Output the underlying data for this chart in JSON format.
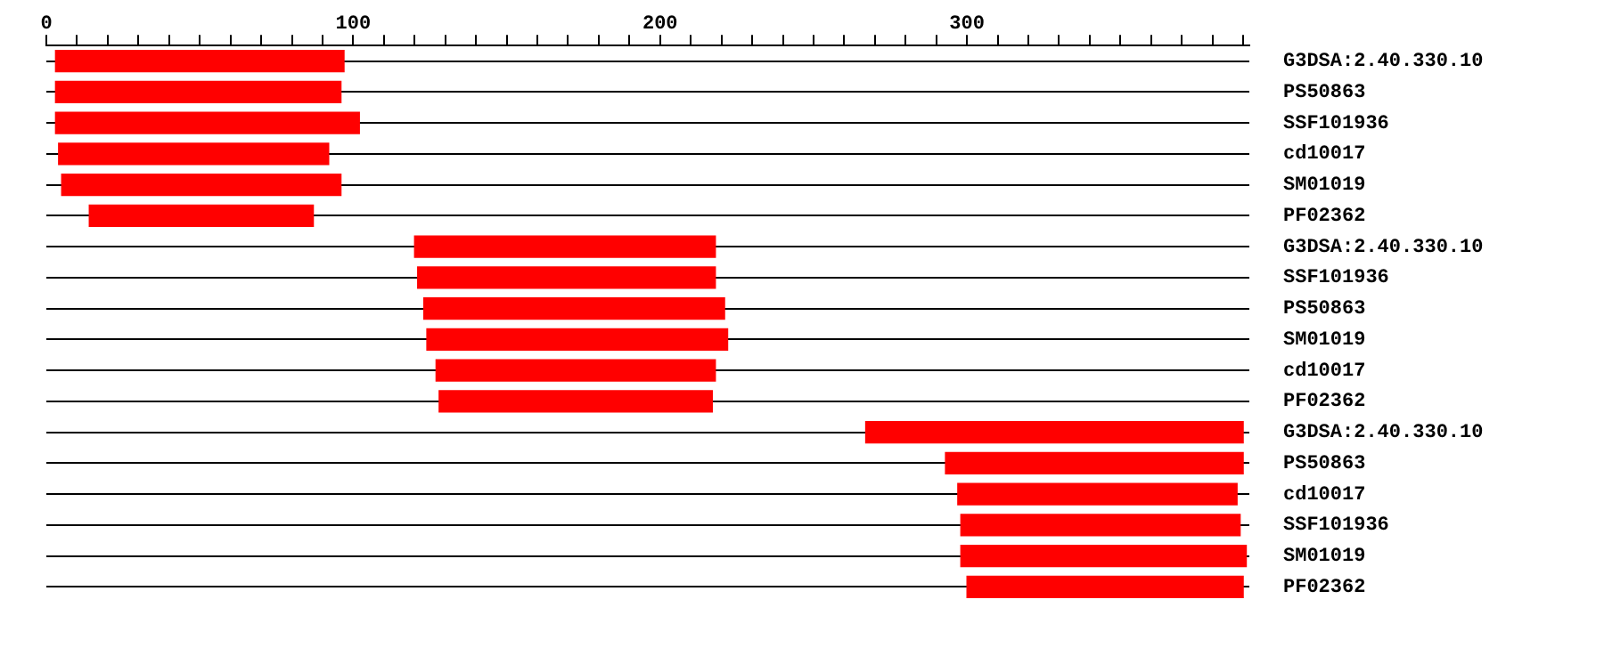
{
  "chart_data": {
    "type": "bar",
    "orientation": "horizontal",
    "categories": [
      "G3DSA:2.40.330.10",
      "PS50863",
      "SSF101936",
      "cd10017",
      "SM01019",
      "PF02362",
      "G3DSA:2.40.330.10",
      "SSF101936",
      "PS50863",
      "SM01019",
      "cd10017",
      "PF02362",
      "G3DSA:2.40.330.10",
      "PS50863",
      "cd10017",
      "SSF101936",
      "SM01019",
      "PF02362"
    ],
    "base": [
      3,
      3,
      3,
      4,
      5,
      14,
      120,
      121,
      123,
      124,
      127,
      128,
      267,
      293,
      297,
      298,
      298,
      300
    ],
    "values": [
      94,
      93,
      99,
      88,
      91,
      73,
      98,
      97,
      98,
      98,
      91,
      89,
      123,
      97,
      91,
      91,
      93,
      90
    ],
    "color": "#ff0000",
    "xlim": [
      0,
      392
    ],
    "xticks": [
      0,
      {
        "value": 10,
        "label": null
      },
      {
        "value": 20,
        "label": null
      },
      {
        "value": 30,
        "label": null
      },
      {
        "value": 40,
        "label": null
      },
      {
        "value": 50,
        "label": null
      },
      {
        "value": 60,
        "label": null
      },
      {
        "value": 70,
        "label": null
      },
      {
        "value": 80,
        "label": null
      },
      {
        "value": 90,
        "label": null
      },
      100,
      {
        "value": 110,
        "label": null
      },
      {
        "value": 120,
        "label": null
      },
      {
        "value": 130,
        "label": null
      },
      {
        "value": 140,
        "label": null
      },
      {
        "value": 150,
        "label": null
      },
      {
        "value": 160,
        "label": null
      },
      {
        "value": 170,
        "label": null
      },
      {
        "value": 180,
        "label": null
      },
      {
        "value": 190,
        "label": null
      },
      200,
      {
        "value": 210,
        "label": null
      },
      {
        "value": 220,
        "label": null
      },
      {
        "value": 230,
        "label": null
      },
      {
        "value": 240,
        "label": null
      },
      {
        "value": 250,
        "label": null
      },
      {
        "value": 260,
        "label": null
      },
      {
        "value": 270,
        "label": null
      },
      {
        "value": 280,
        "label": null
      },
      {
        "value": 290,
        "label": null
      },
      300,
      {
        "value": 310,
        "label": null
      },
      {
        "value": 320,
        "label": null
      },
      {
        "value": 330,
        "label": null
      },
      {
        "value": 340,
        "label": null
      },
      {
        "value": 350,
        "label": null
      },
      {
        "value": 360,
        "label": null
      },
      {
        "value": 370,
        "label": null
      },
      {
        "value": 380,
        "label": null
      },
      {
        "value": 390,
        "label": null
      }
    ],
    "grid": "y",
    "legend": false
  }
}
